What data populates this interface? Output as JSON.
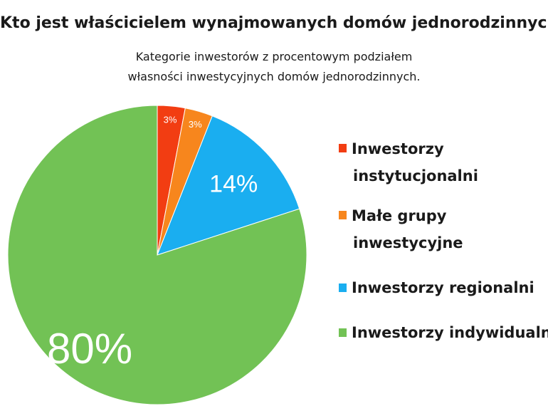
{
  "title": "Kto jest właścicielem wynajmowanych domów jednorodzinnych?",
  "subtitle": {
    "line1": "Kategorie inwestorów z procentowym podziałem",
    "line2": "własności inwestycyjnych domów jednorodzinnych."
  },
  "chart_data": {
    "type": "pie",
    "title": "Kto jest właścicielem wynajmowanych domów jednorodzinnych?",
    "subtitle": "Kategorie inwestorów z procentowym podziałem własności inwestycyjnych domów jednorodzinnych.",
    "start": "top, clockwise",
    "slices": [
      {
        "label": "Inwestorzy instytucjonalni",
        "value": 3,
        "display": "3%",
        "color": "#f23d12"
      },
      {
        "label": "Małe grupy inwestycyjne",
        "value": 3,
        "display": "3%",
        "color": "#f7861d"
      },
      {
        "label": "Inwestorzy regionalni",
        "value": 14,
        "display": "14%",
        "color": "#1aaef0"
      },
      {
        "label": "Inwestorzy indywidualni",
        "value": 80,
        "display": "80%",
        "color": "#72c255"
      }
    ],
    "legend_position": "right"
  },
  "legend": [
    {
      "lines": [
        "Inwestorzy",
        "instytucjonalni"
      ],
      "color": "#f23d12"
    },
    {
      "lines": [
        "Małe grupy",
        "inwestycyjne"
      ],
      "color": "#f7861d"
    },
    {
      "lines": [
        "Inwestorzy regionalni"
      ],
      "color": "#1aaef0"
    },
    {
      "lines": [
        "Inwestorzy indywidualni"
      ],
      "color": "#72c255"
    }
  ]
}
